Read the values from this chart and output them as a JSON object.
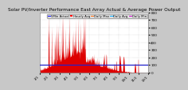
{
  "title": "Solar PV/Inverter Performance East Array Actual & Average Power Output",
  "background_color": "#c8c8c8",
  "plot_bg_color": "#ffffff",
  "grid_color": "#aaaaaa",
  "bar_color": "#dd0000",
  "avg_line_color": "#2222cc",
  "avg_line_value": 0.135,
  "ylim": [
    0,
    1.0
  ],
  "n_points": 520,
  "title_fontsize": 4.2,
  "tick_fontsize": 3.0,
  "legend_fontsize": 2.8,
  "ytick_max": 800,
  "ytick_labels": [
    "0",
    "100",
    "200",
    "300",
    "400",
    "500",
    "600",
    "700",
    "800"
  ],
  "legend_entries": [
    {
      "label": "5Min Actual",
      "color": "#0000ff",
      "type": "line"
    },
    {
      "label": "Hourly Avg",
      "color": "#ff0000",
      "type": "patch"
    },
    {
      "label": "Daily Max",
      "color": "#ff6600",
      "type": "line"
    },
    {
      "label": "Daily Avg",
      "color": "#00aaff",
      "type": "line"
    },
    {
      "label": "Daily Min",
      "color": "#cc00cc",
      "type": "line"
    }
  ]
}
